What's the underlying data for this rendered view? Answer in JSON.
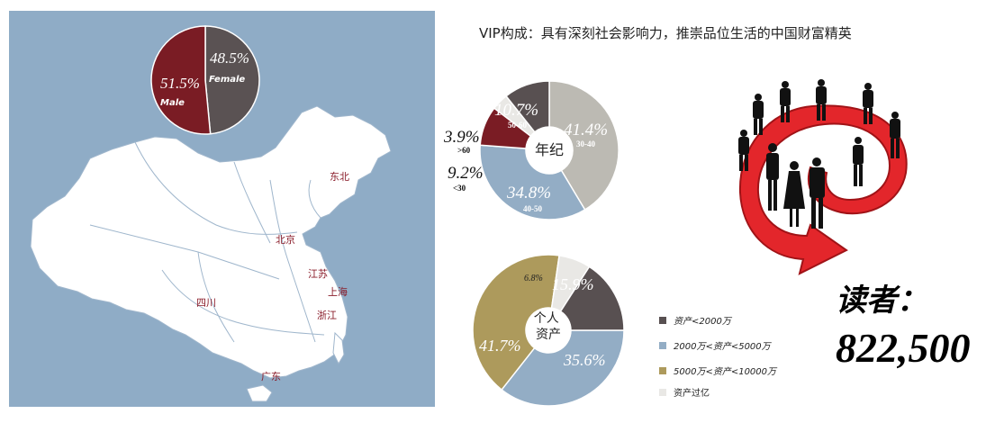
{
  "header": {
    "title": "VIP构成：具有深刻社会影响力，推崇品位生活的中国财富精英"
  },
  "map": {
    "regions": [
      "东北",
      "北京",
      "江苏",
      "上海",
      "浙江",
      "四川",
      "广东"
    ],
    "colors": {
      "background": "#8facc6",
      "land": "#ffffff",
      "label": "#8a1c2a"
    }
  },
  "readers": {
    "label": "读者：",
    "count": "822,500"
  },
  "chart_data": [
    {
      "type": "pie",
      "title": "",
      "slices": [
        {
          "label": "Female",
          "value": 48.5,
          "display": "48.5%",
          "color": "#5a5253"
        },
        {
          "label": "Male",
          "value": 51.5,
          "display": "51.5%",
          "color": "#7a1c24"
        }
      ]
    },
    {
      "type": "pie",
      "title": "年纪",
      "slices": [
        {
          "label": "30-40",
          "value": 41.4,
          "display": "41.4%",
          "color": "#bcbab3"
        },
        {
          "label": "40-50",
          "value": 34.8,
          "display": "34.8%",
          "color": "#93adc5"
        },
        {
          "label": "<30",
          "value": 9.2,
          "display": "9.2%",
          "color": "#7a1c24"
        },
        {
          "label": ">60",
          "value": 3.9,
          "display": "3.9%",
          "color": "#e9e8e5"
        },
        {
          "label": "50-60",
          "value": 10.7,
          "display": "10.7%",
          "color": "#585051"
        }
      ]
    },
    {
      "type": "pie",
      "title": "个人资产",
      "slices": [
        {
          "label": "2000万<资产<5000万",
          "value": 35.6,
          "display": "35.6%",
          "color": "#93adc5"
        },
        {
          "label": "5000万<资产<10000万",
          "value": 41.7,
          "display": "41.7%",
          "color": "#ad9a5c"
        },
        {
          "label": "资产过亿",
          "value": 6.8,
          "display": "6.8%",
          "color": "#e9e8e5"
        },
        {
          "label": "资产<2000万",
          "value": 15.9,
          "display": "15.9%",
          "color": "#585051"
        }
      ],
      "legend": [
        "资产<2000万",
        "2000万<资产<5000万",
        "5000万<资产<10000万",
        "资产过亿"
      ],
      "legend_placement": "right"
    }
  ]
}
